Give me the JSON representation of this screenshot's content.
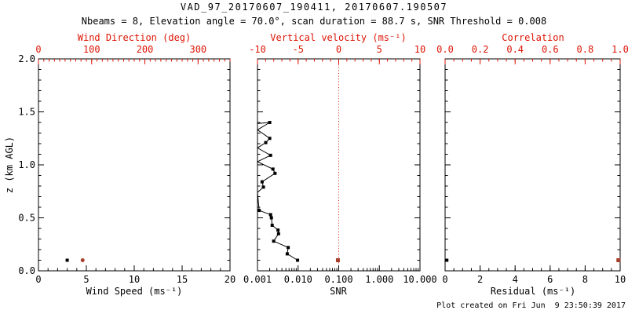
{
  "header": {
    "title": "VAD_97_20170607_190411, 20170607.190507",
    "subtitle": "Nbeams = 8, Elevation angle = 70.0°, scan duration = 88.7 s, SNR Threshold = 0.008"
  },
  "footer": {
    "created_note": "Plot created on Fri Jun  9 23:50:39 2017"
  },
  "colors": {
    "axis_red": "#dd1505",
    "point_red": "#a6402d",
    "black": "#000000",
    "background": "#ffffff"
  },
  "chart_data": {
    "type": "scatter",
    "y_axis": {
      "label": "z (km AGL)",
      "min": 0,
      "max": 2,
      "minor_step": 0.1,
      "ticks": [
        {
          "v": 0,
          "label": "0.0"
        },
        {
          "v": 0.5,
          "label": "0.5"
        },
        {
          "v": 1,
          "label": "1.0"
        },
        {
          "v": 1.5,
          "label": "1.5"
        },
        {
          "v": 2,
          "label": "2.0"
        }
      ]
    },
    "panels": [
      {
        "name": "wind",
        "top_axis": {
          "label": "Wind Direction (deg)",
          "color_role": "axis_red",
          "min": 0,
          "max": 360,
          "minor_step": 10,
          "ticks": [
            {
              "v": 0,
              "label": "0"
            },
            {
              "v": 100,
              "label": "100"
            },
            {
              "v": 200,
              "label": "200"
            },
            {
              "v": 300,
              "label": "300"
            }
          ]
        },
        "bottom_axis": {
          "label": "Wind Speed (ms⁻¹)",
          "min": 0,
          "max": 20,
          "minor_step": 1,
          "ticks": [
            {
              "v": 0,
              "label": "0"
            },
            {
              "v": 5,
              "label": "5"
            },
            {
              "v": 10,
              "label": "10"
            },
            {
              "v": 15,
              "label": "15"
            },
            {
              "v": 20,
              "label": "20"
            }
          ]
        },
        "series": [
          {
            "name": "wind-speed",
            "axis": "bottom",
            "marker": "square",
            "size": 4,
            "color_role": "black",
            "points": [
              {
                "x": 3.0,
                "z": 0.1
              }
            ]
          },
          {
            "name": "wind-direction",
            "axis": "top",
            "marker": "circle",
            "size": 5,
            "color_role": "point_red",
            "points": [
              {
                "x": 83,
                "z": 0.1
              }
            ]
          }
        ]
      },
      {
        "name": "snr",
        "top_axis": {
          "label": "Vertical velocity (ms⁻¹)",
          "color_role": "axis_red",
          "min": -10,
          "max": 10,
          "minor_step": 1,
          "ticks": [
            {
              "v": -10,
              "label": "-10"
            },
            {
              "v": -5,
              "label": "-5"
            },
            {
              "v": 0,
              "label": "0"
            },
            {
              "v": 5,
              "label": "5"
            },
            {
              "v": 10,
              "label": "10"
            }
          ]
        },
        "bottom_axis": {
          "label": "SNR",
          "scale": "log",
          "min": 0.001,
          "max": 10,
          "ticks": [
            {
              "v": 0.001,
              "label": "0.001"
            },
            {
              "v": 0.01,
              "label": "0.010"
            },
            {
              "v": 0.1,
              "label": "0.100"
            },
            {
              "v": 1,
              "label": "1.000"
            },
            {
              "v": 10,
              "label": "10.000"
            }
          ]
        },
        "ref_line": {
          "axis": "top",
          "x": 0,
          "style": "dotted",
          "color_role": "axis_red"
        },
        "series": [
          {
            "name": "snr-profile",
            "axis": "bottom",
            "marker": "square",
            "size": 4,
            "color_role": "black",
            "line": true,
            "points": [
              {
                "x": 0.001,
                "z": 1.39,
                "m": false
              },
              {
                "x": 0.002,
                "z": 1.4,
                "m": true
              },
              {
                "x": 0.001,
                "z": 1.33,
                "m": false
              },
              {
                "x": 0.002,
                "z": 1.25,
                "m": true
              },
              {
                "x": 0.0016,
                "z": 1.21,
                "m": true
              },
              {
                "x": 0.001,
                "z": 1.16,
                "m": false
              },
              {
                "x": 0.0021,
                "z": 1.09,
                "m": true
              },
              {
                "x": 0.001,
                "z": 1.03,
                "m": false
              },
              {
                "x": 0.0024,
                "z": 0.96,
                "m": true
              },
              {
                "x": 0.0027,
                "z": 0.92,
                "m": true
              },
              {
                "x": 0.0013,
                "z": 0.84,
                "m": true
              },
              {
                "x": 0.0014,
                "z": 0.79,
                "m": true
              },
              {
                "x": 0.001,
                "z": 0.74,
                "m": false
              },
              {
                "x": 0.0011,
                "z": 0.57,
                "m": true
              },
              {
                "x": 0.0021,
                "z": 0.53,
                "m": true
              },
              {
                "x": 0.0022,
                "z": 0.5,
                "m": true
              },
              {
                "x": 0.0023,
                "z": 0.43,
                "m": true
              },
              {
                "x": 0.0032,
                "z": 0.385,
                "m": true
              },
              {
                "x": 0.0033,
                "z": 0.35,
                "m": true
              },
              {
                "x": 0.0025,
                "z": 0.28,
                "m": true
              },
              {
                "x": 0.0057,
                "z": 0.22,
                "m": true
              },
              {
                "x": 0.0054,
                "z": 0.16,
                "m": true
              },
              {
                "x": 0.0097,
                "z": 0.1,
                "m": true
              }
            ]
          },
          {
            "name": "vertical-velocity",
            "axis": "top",
            "marker": "square",
            "size": 5,
            "color_role": "point_red",
            "points": [
              {
                "x": -0.1,
                "z": 0.1
              }
            ]
          }
        ]
      },
      {
        "name": "residual",
        "top_axis": {
          "label": "Correlation",
          "color_role": "axis_red",
          "min": 0,
          "max": 1,
          "minor_step": 0.05,
          "ticks": [
            {
              "v": 0,
              "label": "0.0"
            },
            {
              "v": 0.2,
              "label": "0.2"
            },
            {
              "v": 0.4,
              "label": "0.4"
            },
            {
              "v": 0.6,
              "label": "0.6"
            },
            {
              "v": 0.8,
              "label": "0.8"
            },
            {
              "v": 1,
              "label": "1.0"
            }
          ]
        },
        "bottom_axis": {
          "label": "Residual (ms⁻¹)",
          "min": 0,
          "max": 10,
          "minor_step": 0.5,
          "ticks": [
            {
              "v": 0,
              "label": "0"
            },
            {
              "v": 2,
              "label": "2"
            },
            {
              "v": 4,
              "label": "4"
            },
            {
              "v": 6,
              "label": "6"
            },
            {
              "v": 8,
              "label": "8"
            },
            {
              "v": 10,
              "label": "10"
            }
          ]
        },
        "series": [
          {
            "name": "residual",
            "axis": "bottom",
            "marker": "square",
            "size": 4,
            "color_role": "black",
            "points": [
              {
                "x": 0.1,
                "z": 0.1
              }
            ]
          },
          {
            "name": "correlation",
            "axis": "top",
            "marker": "square",
            "size": 5,
            "color_role": "point_red",
            "points": [
              {
                "x": 0.99,
                "z": 0.1
              }
            ]
          }
        ]
      }
    ]
  }
}
